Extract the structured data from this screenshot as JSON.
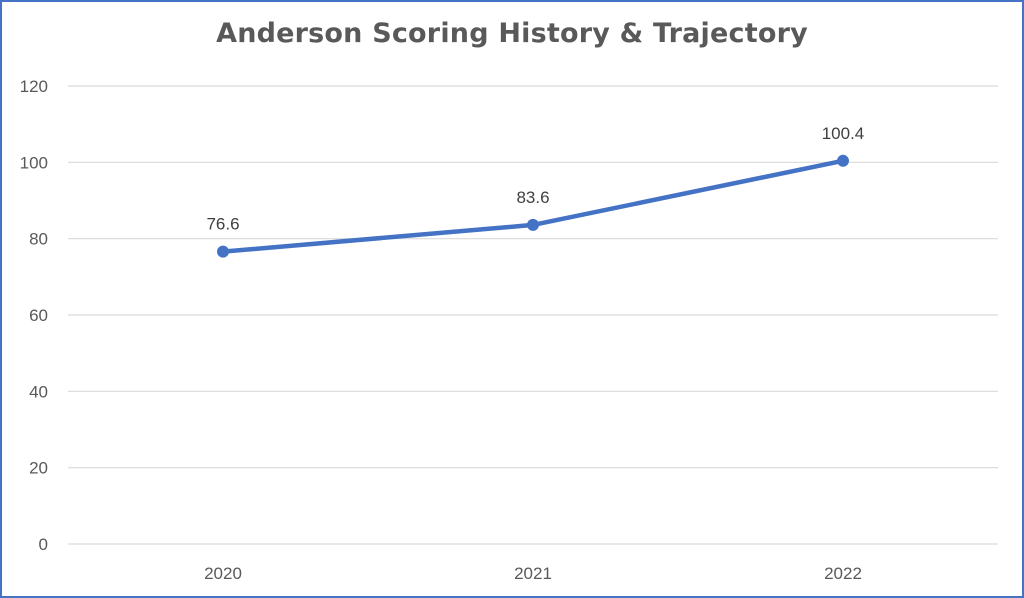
{
  "chart_data": {
    "type": "line",
    "title": "Anderson Scoring History & Trajectory",
    "xlabel": "",
    "ylabel": "",
    "categories": [
      "2020",
      "2021",
      "2022"
    ],
    "series": [
      {
        "values": [
          76.6,
          83.6,
          100.4
        ],
        "data_labels": [
          "76.6",
          "83.6",
          "100.4"
        ],
        "color": "#4472C4"
      }
    ],
    "ylim": [
      0,
      120
    ],
    "yticks": [
      0,
      20,
      40,
      60,
      80,
      100,
      120
    ],
    "grid": true,
    "legend": "none",
    "markers": true
  },
  "colors": {
    "frame": "#4472C4",
    "line": "#4472C4",
    "grid": "#D9D9D9",
    "text": "#595959"
  }
}
